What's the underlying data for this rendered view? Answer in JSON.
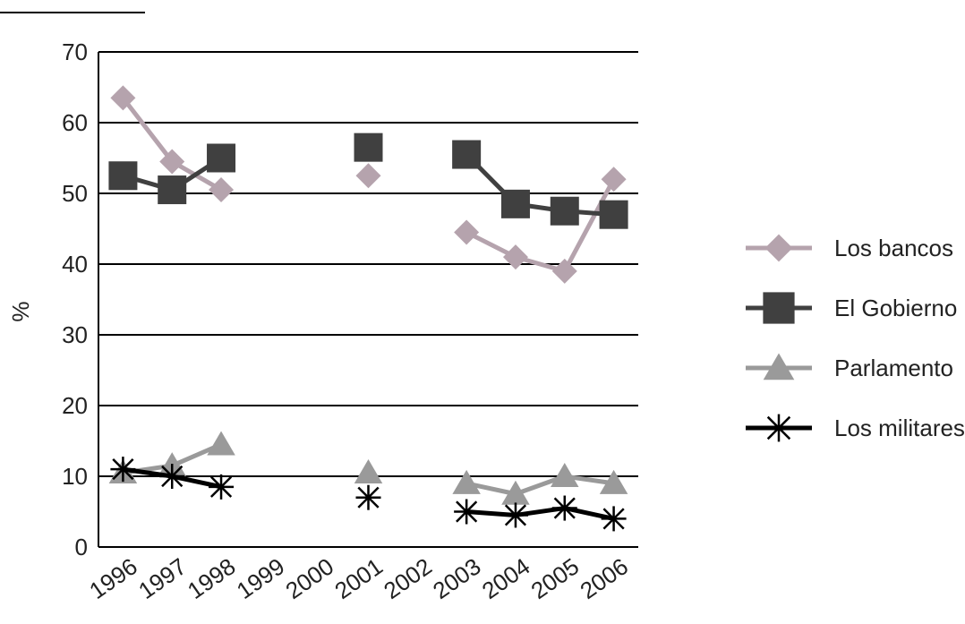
{
  "chart_data": {
    "type": "line",
    "title": "",
    "xlabel": "",
    "ylabel": "%",
    "ylim": [
      0,
      70
    ],
    "yticks": [
      0,
      10,
      20,
      30,
      40,
      50,
      60,
      70
    ],
    "grid": "horizontal",
    "legend_position": "right",
    "categories": [
      "1996",
      "1997",
      "1998",
      "1999",
      "2000",
      "2001",
      "2002",
      "2003",
      "2004",
      "2005",
      "2006"
    ],
    "series": [
      {
        "name": "Los bancos",
        "marker": "diamond",
        "color": "#b5a3ad",
        "values": [
          63.5,
          54.5,
          50.5,
          null,
          null,
          52.5,
          null,
          44.5,
          41,
          39,
          52
        ]
      },
      {
        "name": "El Gobierno",
        "marker": "square",
        "color": "#404040",
        "values": [
          52.5,
          50.5,
          55,
          null,
          null,
          56.5,
          null,
          55.5,
          48.5,
          47.5,
          47
        ]
      },
      {
        "name": "Parlamento",
        "marker": "triangle",
        "color": "#9a9a9a",
        "values": [
          10.5,
          11.5,
          14.5,
          null,
          null,
          10.5,
          null,
          9,
          7.5,
          10,
          9
        ]
      },
      {
        "name": "Los militares",
        "marker": "asterisk",
        "color": "#000000",
        "values": [
          11,
          10,
          8.5,
          null,
          null,
          7,
          null,
          5,
          4.5,
          5.5,
          4
        ]
      }
    ]
  }
}
